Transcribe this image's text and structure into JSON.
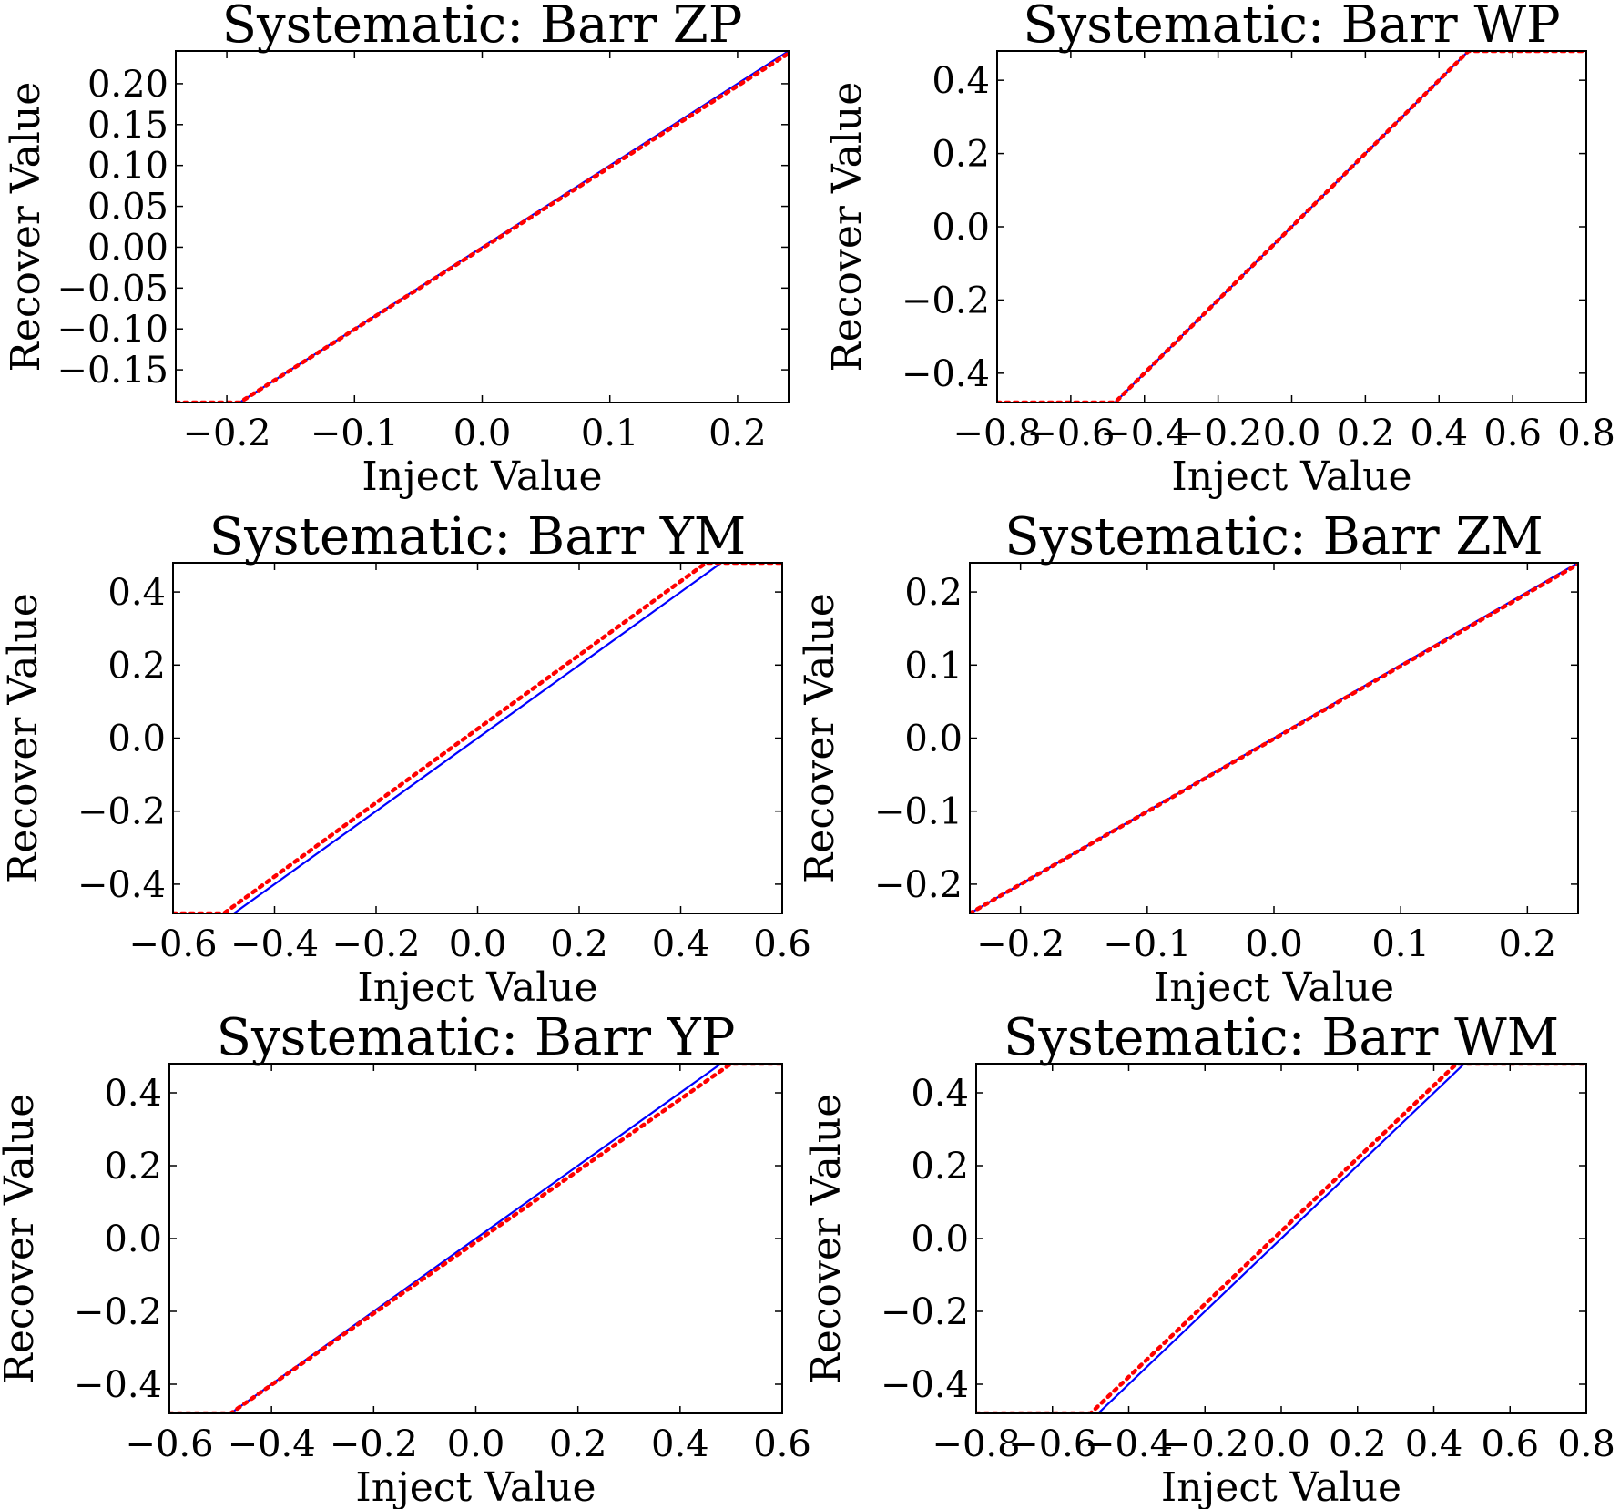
{
  "chart_data": [
    {
      "type": "line",
      "title": "Systematic: Barr ZP",
      "xlabel": "Inject Value",
      "ylabel": "Recover Value",
      "xlim": [
        -0.24,
        0.24
      ],
      "ylim": [
        -0.19,
        0.24
      ],
      "xticks": [
        -0.2,
        -0.1,
        0.0,
        0.1,
        0.2
      ],
      "xtick_labels": [
        "−0.2",
        "−0.1",
        "0.0",
        "0.1",
        "0.2"
      ],
      "yticks": [
        -0.15,
        -0.1,
        -0.05,
        0.0,
        0.05,
        0.1,
        0.15,
        0.2
      ],
      "ytick_labels": [
        "−0.15",
        "−0.10",
        "−0.05",
        "0.00",
        "0.05",
        "0.10",
        "0.15",
        "0.20"
      ],
      "series": [
        {
          "kind": "identity",
          "color": "#0000ff",
          "x": [
            -0.24,
            0.24
          ],
          "y": [
            -0.24,
            0.24
          ]
        },
        {
          "kind": "recovered",
          "color": "#ff0000",
          "x": [
            -0.24,
            -0.19,
            0.24
          ],
          "y": [
            -0.19,
            -0.19,
            0.237
          ]
        }
      ]
    },
    {
      "type": "line",
      "title": "Systematic: Barr WP",
      "xlabel": "Inject Value",
      "ylabel": "Recover Value",
      "xlim": [
        -0.8,
        0.8
      ],
      "ylim": [
        -0.48,
        0.48
      ],
      "xticks": [
        -0.8,
        -0.6,
        -0.4,
        -0.2,
        0.0,
        0.2,
        0.4,
        0.6,
        0.8
      ],
      "xtick_labels": [
        "−0.8",
        "−0.6",
        "−0.4",
        "−0.2",
        "0.0",
        "0.2",
        "0.4",
        "0.6",
        "0.8"
      ],
      "yticks": [
        -0.4,
        -0.2,
        0.0,
        0.2,
        0.4
      ],
      "ytick_labels": [
        "−0.4",
        "−0.2",
        "0.0",
        "0.2",
        "0.4"
      ],
      "series": [
        {
          "kind": "identity",
          "color": "#0000ff",
          "x": [
            -0.8,
            0.8
          ],
          "y": [
            -0.8,
            0.8
          ]
        },
        {
          "kind": "recovered",
          "color": "#ff0000",
          "x": [
            -0.8,
            -0.48,
            0.48,
            0.8
          ],
          "y": [
            -0.48,
            -0.48,
            0.48,
            0.48
          ]
        }
      ]
    },
    {
      "type": "line",
      "title": "Systematic: Barr YM",
      "xlabel": "Inject Value",
      "ylabel": "Recover Value",
      "xlim": [
        -0.6,
        0.6
      ],
      "ylim": [
        -0.48,
        0.48
      ],
      "xticks": [
        -0.6,
        -0.4,
        -0.2,
        0.0,
        0.2,
        0.4,
        0.6
      ],
      "xtick_labels": [
        "−0.6",
        "−0.4",
        "−0.2",
        "0.0",
        "0.2",
        "0.4",
        "0.6"
      ],
      "yticks": [
        -0.4,
        -0.2,
        0.0,
        0.2,
        0.4
      ],
      "ytick_labels": [
        "−0.4",
        "−0.2",
        "0.0",
        "0.2",
        "0.4"
      ],
      "series": [
        {
          "kind": "identity",
          "color": "#0000ff",
          "x": [
            -0.6,
            0.6
          ],
          "y": [
            -0.6,
            0.6
          ]
        },
        {
          "kind": "recovered",
          "color": "#ff0000",
          "x": [
            -0.6,
            -0.5,
            0.45,
            0.6
          ],
          "y": [
            -0.48,
            -0.48,
            0.48,
            0.48
          ]
        }
      ]
    },
    {
      "type": "line",
      "title": "Systematic: Barr ZM",
      "xlabel": "Inject Value",
      "ylabel": "Recover Value",
      "xlim": [
        -0.24,
        0.24
      ],
      "ylim": [
        -0.24,
        0.24
      ],
      "xticks": [
        -0.2,
        -0.1,
        0.0,
        0.1,
        0.2
      ],
      "xtick_labels": [
        "−0.2",
        "−0.1",
        "0.0",
        "0.1",
        "0.2"
      ],
      "yticks": [
        -0.2,
        -0.1,
        0.0,
        0.1,
        0.2
      ],
      "ytick_labels": [
        "−0.2",
        "−0.1",
        "0.0",
        "0.1",
        "0.2"
      ],
      "series": [
        {
          "kind": "identity",
          "color": "#0000ff",
          "x": [
            -0.24,
            0.24
          ],
          "y": [
            -0.24,
            0.24
          ]
        },
        {
          "kind": "recovered",
          "color": "#ff0000",
          "x": [
            -0.24,
            0.24
          ],
          "y": [
            -0.24,
            0.238
          ]
        }
      ]
    },
    {
      "type": "line",
      "title": "Systematic: Barr YP",
      "xlabel": "Inject Value",
      "ylabel": "Recover Value",
      "xlim": [
        -0.6,
        0.6
      ],
      "ylim": [
        -0.48,
        0.48
      ],
      "xticks": [
        -0.6,
        -0.4,
        -0.2,
        0.0,
        0.2,
        0.4,
        0.6
      ],
      "xtick_labels": [
        "−0.6",
        "−0.4",
        "−0.2",
        "0.0",
        "0.2",
        "0.4",
        "0.6"
      ],
      "yticks": [
        -0.4,
        -0.2,
        0.0,
        0.2,
        0.4
      ],
      "ytick_labels": [
        "−0.4",
        "−0.2",
        "0.0",
        "0.2",
        "0.4"
      ],
      "series": [
        {
          "kind": "identity",
          "color": "#0000ff",
          "x": [
            -0.6,
            0.6
          ],
          "y": [
            -0.6,
            0.6
          ]
        },
        {
          "kind": "recovered",
          "color": "#ff0000",
          "x": [
            -0.6,
            -0.48,
            0.5,
            0.6
          ],
          "y": [
            -0.48,
            -0.48,
            0.48,
            0.48
          ]
        }
      ]
    },
    {
      "type": "line",
      "title": "Systematic: Barr WM",
      "xlabel": "Inject Value",
      "ylabel": "Recover Value",
      "xlim": [
        -0.8,
        0.8
      ],
      "ylim": [
        -0.48,
        0.48
      ],
      "xticks": [
        -0.8,
        -0.6,
        -0.4,
        -0.2,
        0.0,
        0.2,
        0.4,
        0.6,
        0.8
      ],
      "xtick_labels": [
        "−0.8",
        "−0.6",
        "−0.4",
        "−0.2",
        "0.0",
        "0.2",
        "0.4",
        "0.6",
        "0.8"
      ],
      "yticks": [
        -0.4,
        -0.2,
        0.0,
        0.2,
        0.4
      ],
      "ytick_labels": [
        "−0.4",
        "−0.2",
        "0.0",
        "0.2",
        "0.4"
      ],
      "series": [
        {
          "kind": "identity",
          "color": "#0000ff",
          "x": [
            -0.8,
            0.8
          ],
          "y": [
            -0.8,
            0.8
          ]
        },
        {
          "kind": "recovered",
          "color": "#ff0000",
          "x": [
            -0.8,
            -0.5,
            0.46,
            0.8
          ],
          "y": [
            -0.48,
            -0.48,
            0.48,
            0.48
          ]
        }
      ]
    }
  ]
}
